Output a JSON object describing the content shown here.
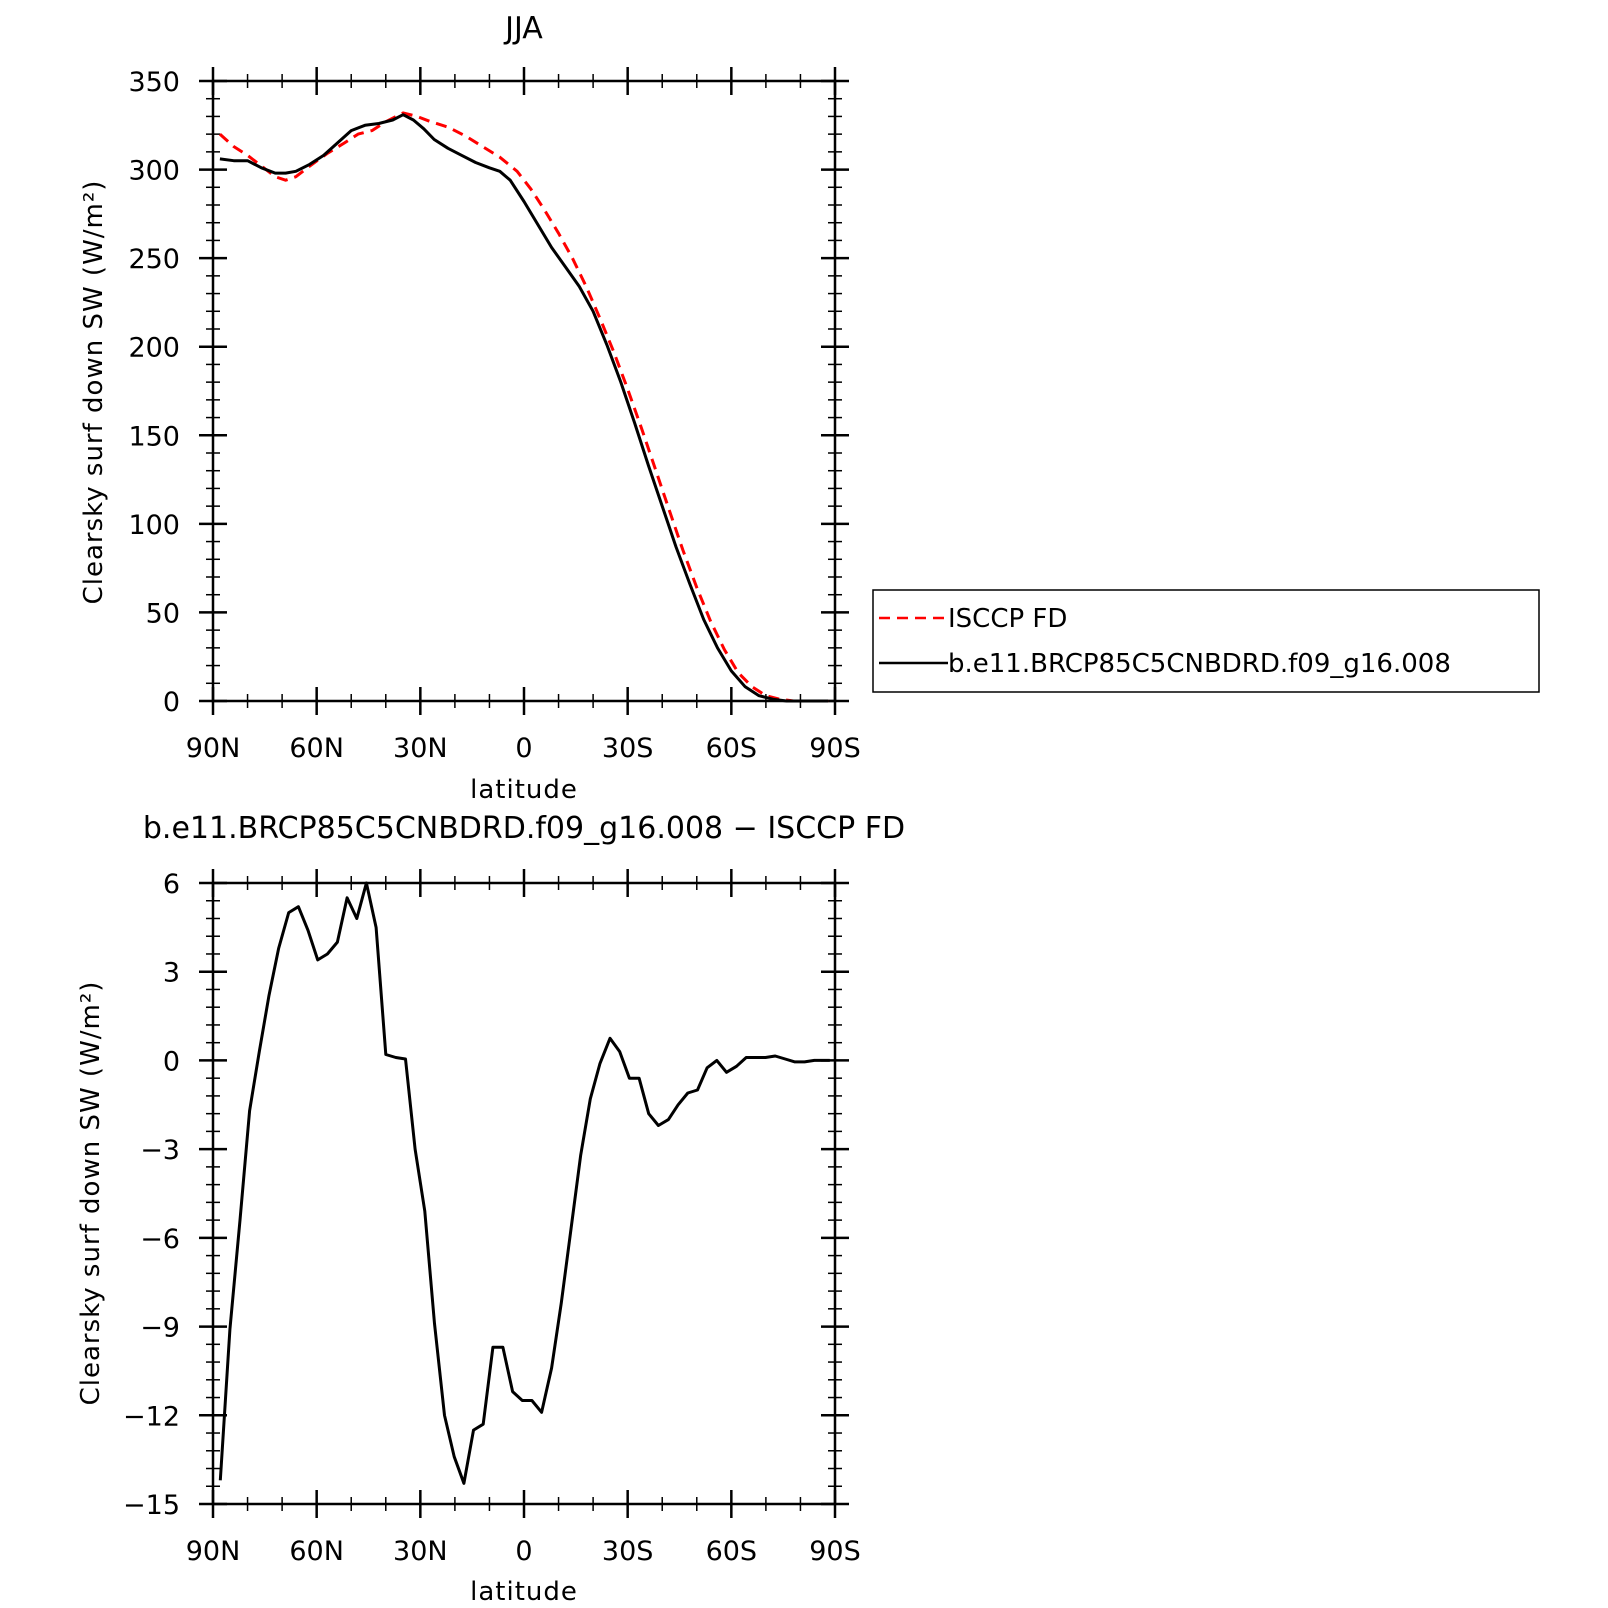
{
  "chart_data": [
    {
      "type": "line",
      "title": "JJA",
      "xlabel": "latitude",
      "ylabel": "Clearsky surf down SW (W/m²)",
      "ylim": [
        0,
        350
      ],
      "yticks": [
        "0",
        "50",
        "100",
        "150",
        "200",
        "250",
        "300",
        "350"
      ],
      "xlim": [
        90,
        -90
      ],
      "xticks": [
        "90N",
        "60N",
        "30N",
        "0",
        "30S",
        "60S",
        "90S"
      ],
      "legend": {
        "placement": "outside-right"
      },
      "series": [
        {
          "name": "ISCCP FD",
          "color": "#ff0000",
          "dash": "dashed",
          "points": [
            [
              88,
              320
            ],
            [
              84,
              313
            ],
            [
              80,
              308
            ],
            [
              76,
              302
            ],
            [
              72,
              296
            ],
            [
              69,
              294
            ],
            [
              66,
              296
            ],
            [
              62,
              302
            ],
            [
              57,
              309
            ],
            [
              52,
              315
            ],
            [
              48,
              320
            ],
            [
              44,
              322
            ],
            [
              40,
              327
            ],
            [
              35,
              332
            ],
            [
              31,
              330
            ],
            [
              27,
              327
            ],
            [
              22,
              324
            ],
            [
              17,
              319
            ],
            [
              12,
              313
            ],
            [
              7,
              307
            ],
            [
              2,
              299
            ],
            [
              -2,
              289
            ],
            [
              -6,
              277
            ],
            [
              -10,
              264
            ],
            [
              -14,
              250
            ],
            [
              -18,
              234
            ],
            [
              -22,
              216
            ],
            [
              -26,
              197
            ],
            [
              -30,
              176
            ],
            [
              -34,
              154
            ],
            [
              -38,
              131
            ],
            [
              -42,
              108
            ],
            [
              -46,
              85
            ],
            [
              -50,
              64
            ],
            [
              -54,
              45
            ],
            [
              -58,
              29
            ],
            [
              -62,
              16
            ],
            [
              -66,
              8
            ],
            [
              -70,
              3
            ],
            [
              -74,
              1
            ],
            [
              -78,
              0
            ],
            [
              -82,
              0
            ],
            [
              -88,
              0
            ]
          ]
        },
        {
          "name": "b.e11.BRCP85C5CNBDRD.f09_g16.008",
          "color": "#000000",
          "dash": "solid",
          "points": [
            [
              88,
              306
            ],
            [
              84,
              305
            ],
            [
              80,
              305
            ],
            [
              76,
              301
            ],
            [
              72,
              298
            ],
            [
              69,
              298
            ],
            [
              66,
              299
            ],
            [
              62,
              303
            ],
            [
              58,
              308
            ],
            [
              54,
              315
            ],
            [
              50,
              322
            ],
            [
              46,
              325
            ],
            [
              42,
              326
            ],
            [
              38,
              328
            ],
            [
              35,
              331
            ],
            [
              32,
              328
            ],
            [
              29,
              323
            ],
            [
              26,
              317
            ],
            [
              22,
              312
            ],
            [
              18,
              308
            ],
            [
              14,
              304
            ],
            [
              10,
              301
            ],
            [
              7,
              299
            ],
            [
              4,
              294
            ],
            [
              0,
              282
            ],
            [
              -4,
              269
            ],
            [
              -8,
              256
            ],
            [
              -12,
              245
            ],
            [
              -16,
              234
            ],
            [
              -20,
              220
            ],
            [
              -24,
              201
            ],
            [
              -28,
              180
            ],
            [
              -32,
              157
            ],
            [
              -36,
              133
            ],
            [
              -40,
              110
            ],
            [
              -44,
              87
            ],
            [
              -48,
              66
            ],
            [
              -52,
              46
            ],
            [
              -56,
              30
            ],
            [
              -60,
              17
            ],
            [
              -64,
              8
            ],
            [
              -68,
              3
            ],
            [
              -72,
              1
            ],
            [
              -76,
              0
            ],
            [
              -80,
              0
            ],
            [
              -88,
              0
            ]
          ]
        }
      ]
    },
    {
      "type": "line",
      "title": "b.e11.BRCP85C5CNBDRD.f09_g16.008 − ISCCP FD",
      "xlabel": "latitude",
      "ylabel": "Clearsky surf down SW (W/m²)",
      "ylim": [
        -15,
        6
      ],
      "yticks": [
        "−15",
        "−12",
        "−9",
        "−6",
        "−3",
        "0",
        "3",
        "6"
      ],
      "xlim": [
        90,
        -90
      ],
      "xticks": [
        "90N",
        "60N",
        "30N",
        "0",
        "30S",
        "60S",
        "90S"
      ],
      "series": [
        {
          "color": "#000000",
          "dash": "solid",
          "points": [
            [
              87.9,
              -14.2
            ],
            [
              85.1,
              -9.1
            ],
            [
              82.2,
              -5.4
            ],
            [
              79.4,
              -1.7
            ],
            [
              76.6,
              0.3
            ],
            [
              73.8,
              2.2
            ],
            [
              71.0,
              3.8
            ],
            [
              68.1,
              5.0
            ],
            [
              65.3,
              5.2
            ],
            [
              62.5,
              4.4
            ],
            [
              59.7,
              3.4
            ],
            [
              56.9,
              3.6
            ],
            [
              54.0,
              4.0
            ],
            [
              51.2,
              5.5
            ],
            [
              48.4,
              4.8
            ],
            [
              45.6,
              6.0
            ],
            [
              42.8,
              4.5
            ],
            [
              40.0,
              0.2
            ],
            [
              37.1,
              0.1
            ],
            [
              34.3,
              0.05
            ],
            [
              31.5,
              -3.0
            ],
            [
              28.7,
              -5.1
            ],
            [
              25.9,
              -8.9
            ],
            [
              23.0,
              -12.0
            ],
            [
              20.2,
              -13.4
            ],
            [
              17.4,
              -14.3
            ],
            [
              14.6,
              -12.5
            ],
            [
              11.8,
              -12.3
            ],
            [
              9.0,
              -9.7
            ],
            [
              6.1,
              -9.7
            ],
            [
              3.3,
              -11.2
            ],
            [
              0.5,
              -11.5
            ],
            [
              -2.3,
              -11.5
            ],
            [
              -5.1,
              -11.9
            ],
            [
              -8.0,
              -10.4
            ],
            [
              -10.8,
              -8.2
            ],
            [
              -13.6,
              -5.7
            ],
            [
              -16.4,
              -3.2
            ],
            [
              -19.2,
              -1.3
            ],
            [
              -22.0,
              -0.1
            ],
            [
              -24.9,
              0.75
            ],
            [
              -27.7,
              0.3
            ],
            [
              -30.5,
              -0.6
            ],
            [
              -33.3,
              -0.6
            ],
            [
              -36.1,
              -1.8
            ],
            [
              -38.9,
              -2.2
            ],
            [
              -41.8,
              -2.0
            ],
            [
              -44.6,
              -1.5
            ],
            [
              -47.4,
              -1.1
            ],
            [
              -50.2,
              -1.0
            ],
            [
              -53.0,
              -0.25
            ],
            [
              -55.8,
              0.0
            ],
            [
              -58.6,
              -0.4
            ],
            [
              -61.5,
              -0.2
            ],
            [
              -64.3,
              0.1
            ],
            [
              -67.1,
              0.1
            ],
            [
              -69.9,
              0.1
            ],
            [
              -72.7,
              0.15
            ],
            [
              -75.6,
              0.05
            ],
            [
              -78.4,
              -0.05
            ],
            [
              -81.2,
              -0.05
            ],
            [
              -84.0,
              0.0
            ],
            [
              -86.9,
              0.0
            ],
            [
              -88.5,
              0.0
            ]
          ]
        }
      ]
    }
  ]
}
